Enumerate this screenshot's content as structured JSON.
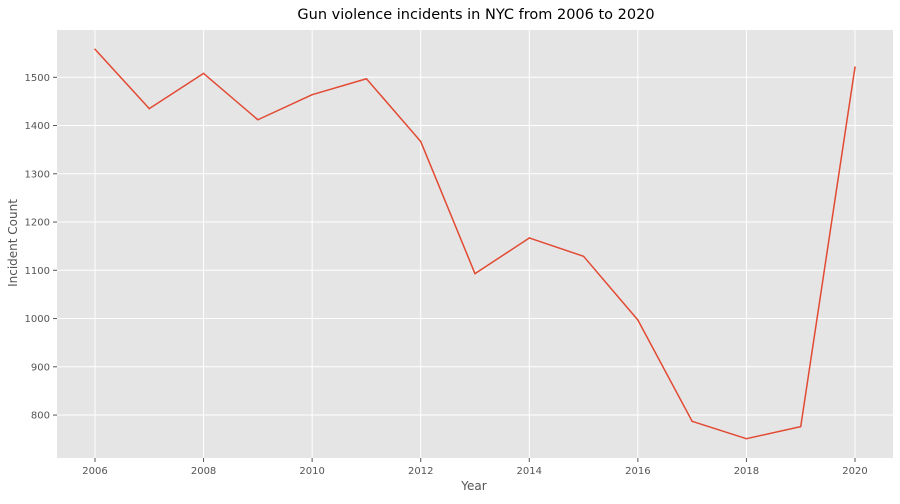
{
  "chart_data": {
    "type": "line",
    "title": "Gun violence incidents in NYC from 2006 to 2020",
    "xlabel": "Year",
    "ylabel": "Incident Count",
    "x": [
      2006,
      2007,
      2008,
      2009,
      2010,
      2011,
      2012,
      2013,
      2014,
      2015,
      2016,
      2017,
      2018,
      2019,
      2020
    ],
    "series": [
      {
        "values": [
          1558,
          1435,
          1508,
          1412,
          1464,
          1497,
          1367,
          1093,
          1167,
          1129,
          997,
          787,
          751,
          776,
          1521
        ]
      }
    ],
    "xlim": [
      2005.3,
      2020.7
    ],
    "ylim": [
      711,
      1598
    ],
    "xticks": [
      2006,
      2008,
      2010,
      2012,
      2014,
      2016,
      2018,
      2020
    ],
    "yticks": [
      800,
      900,
      1000,
      1100,
      1200,
      1300,
      1400,
      1500
    ],
    "grid": true,
    "legend": "none",
    "colors": {
      "line": "#e24a33",
      "plot_background": "#e5e5e5",
      "grid": "#ffffff"
    }
  }
}
